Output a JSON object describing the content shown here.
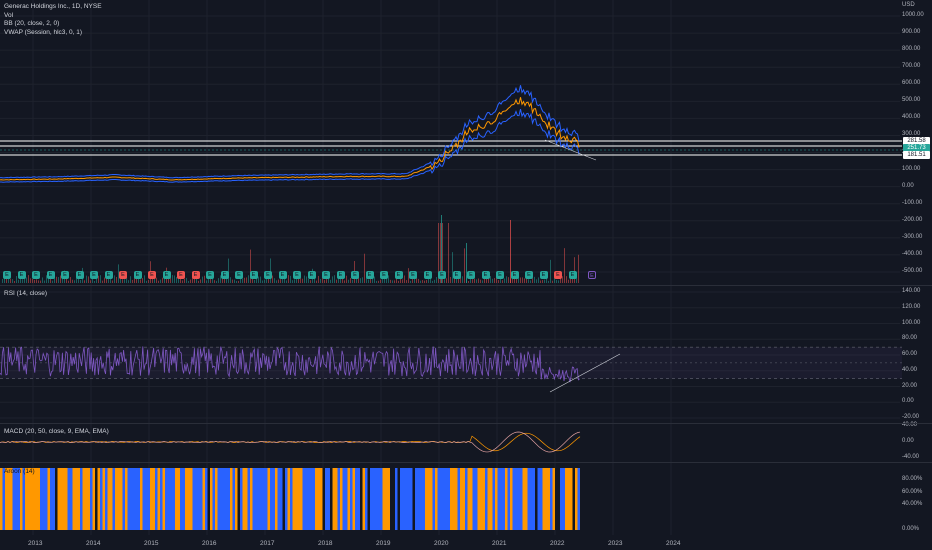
{
  "main_legend": {
    "symbol": "Generac Holdings Inc., 1D, NYSE",
    "vol": "Vol",
    "bb": "BB (20, close, 2, 0)",
    "vwap": "VWAP (Session, hlc3, 0, 1)"
  },
  "price_axis": {
    "currency": "USD",
    "ticks": [
      "1000.00",
      "900.00",
      "800.00",
      "700.00",
      "600.00",
      "500.00",
      "400.00",
      "300.00",
      "200.00",
      "100.00",
      "0.00",
      "-100.00",
      "-200.00",
      "-300.00",
      "-400.00",
      "-500.00"
    ]
  },
  "price_tags": [
    {
      "label": "281.58",
      "bg": "#ffffff",
      "fg": "#131722"
    },
    {
      "label": "251.73",
      "bg": "#26a69a",
      "fg": "#ffffff"
    },
    {
      "label": "181.51",
      "bg": "#ffffff",
      "fg": "#131722"
    }
  ],
  "rsi": {
    "legend": "RSI (14, close)",
    "ticks": [
      "140.00",
      "120.00",
      "100.00",
      "80.00",
      "60.00",
      "40.00",
      "20.00",
      "0.00",
      "-20.00"
    ]
  },
  "macd": {
    "legend": "MACD (20, 50, close, 9, EMA, EMA)",
    "ticks": [
      "40.00",
      "0.00",
      "-40.00"
    ]
  },
  "pct_pane": {
    "legend": "Aroon (14)",
    "ticks": [
      "80.00%",
      "60.00%",
      "40.00%",
      "0.00%"
    ]
  },
  "x_axis": [
    "2013",
    "2014",
    "2015",
    "2016",
    "2017",
    "2018",
    "2019",
    "2020",
    "2021",
    "2022",
    "2023",
    "2024"
  ],
  "events": [
    "E",
    "E",
    "E",
    "E",
    "E",
    "E",
    "E",
    "E",
    "E",
    "E",
    "E",
    "E",
    "E",
    "E",
    "E",
    "E",
    "E",
    "E",
    "E",
    "E",
    "E",
    "E",
    "E",
    "E",
    "E",
    "E",
    "E",
    "E",
    "E",
    "E",
    "E",
    "E",
    "E",
    "E",
    "E",
    "E",
    "E",
    "E",
    "E",
    "E",
    "E"
  ],
  "colors": {
    "bg": "#131722",
    "price": "#ff9800",
    "bb": "#2962ff",
    "rsi": "#7e57c2",
    "macd": "#ffffff",
    "signal": "#ff5252",
    "accent_green": "#26a69a",
    "accent_red": "#ef5350"
  },
  "chart_data": {
    "type": "line",
    "title": "Generac Holdings Inc., 1D, NYSE",
    "x": [
      "2013",
      "2014",
      "2015",
      "2016",
      "2017",
      "2018",
      "2019",
      "2020",
      "2020.5",
      "2021",
      "2021.5",
      "2021.9",
      "2022",
      "2022.3"
    ],
    "series": [
      {
        "name": "close",
        "values": [
          40,
          45,
          55,
          40,
          50,
          55,
          60,
          60,
          130,
          300,
          420,
          520,
          330,
          250
        ]
      }
    ],
    "ylim": [
      -550,
      1050
    ],
    "ylabel": "USD",
    "horizontal_levels": [
      281.58,
      251.73,
      181.51
    ]
  }
}
